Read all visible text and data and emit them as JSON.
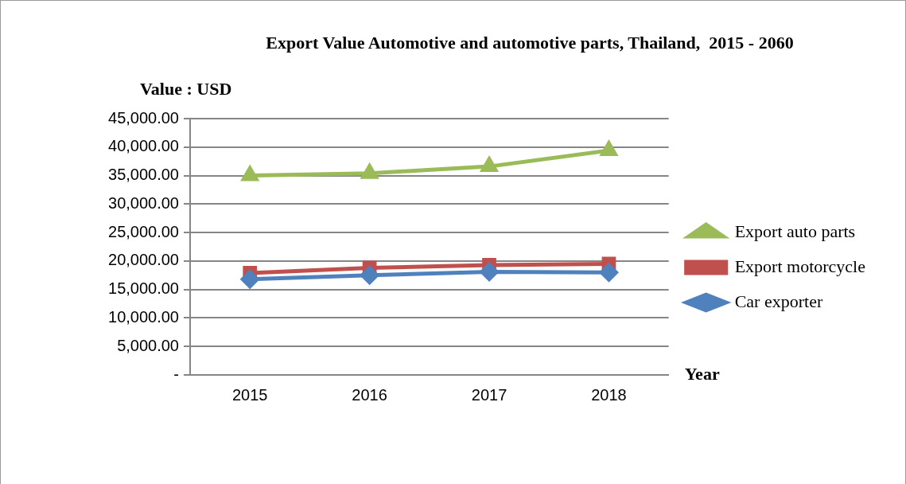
{
  "chart_data": {
    "type": "line",
    "title": "Export Value Automotive and automotive parts, Thailand,  2015 - 2060",
    "ylabel": "Value : USD",
    "xlabel": "Year",
    "categories": [
      "2015",
      "2016",
      "2017",
      "2018"
    ],
    "series": [
      {
        "name": "Car exporter",
        "color": "#4f81bd",
        "marker": "diamond",
        "values": [
          16800,
          17500,
          18100,
          18000
        ]
      },
      {
        "name": "Export motorcycle",
        "color": "#c0504d",
        "marker": "square",
        "values": [
          17900,
          18800,
          19300,
          19500
        ]
      },
      {
        "name": "Export auto parts",
        "color": "#9bbb59",
        "marker": "triangle",
        "values": [
          35000,
          35400,
          36600,
          39400
        ]
      }
    ],
    "ylim": [
      0,
      45000
    ],
    "yticks": [
      {
        "value": 0,
        "label": "-"
      },
      {
        "value": 5000,
        "label": "5,000.00"
      },
      {
        "value": 10000,
        "label": "10,000.00"
      },
      {
        "value": 15000,
        "label": "15,000.00"
      },
      {
        "value": 20000,
        "label": "20,000.00"
      },
      {
        "value": 25000,
        "label": "25,000.00"
      },
      {
        "value": 30000,
        "label": "30,000.00"
      },
      {
        "value": 35000,
        "label": "35,000.00"
      },
      {
        "value": 40000,
        "label": "40,000.00"
      },
      {
        "value": 45000,
        "label": "45,000.00"
      }
    ],
    "grid": "y",
    "legend": "right",
    "line_style": "solid"
  }
}
